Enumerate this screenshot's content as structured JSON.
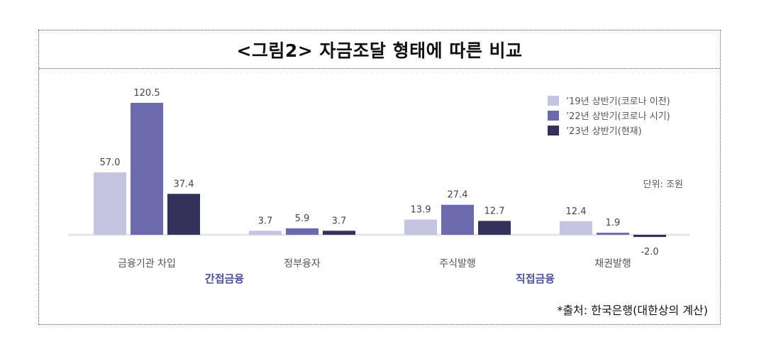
{
  "title": "<그림2> 자금조달 형태에 따른 비교",
  "unit_label": "단위: 조원",
  "source": "*출처: 한국은행(대한상의 계산)",
  "colors": {
    "series1": "#c3c5e1",
    "series2": "#6a6aad",
    "series3": "#32325a",
    "group_label": "#4b4f9a",
    "baseline": "#e6e6e6"
  },
  "chart_data": {
    "type": "bar",
    "categories": [
      "금융기관 차입",
      "정부융자",
      "주식발행",
      "채권발행"
    ],
    "groups": [
      {
        "label": "간접금융",
        "categories": [
          "금융기관 차입",
          "정부융자"
        ]
      },
      {
        "label": "직접금융",
        "categories": [
          "주식발행",
          "채권발행"
        ]
      }
    ],
    "series": [
      {
        "name": "’19년 상반기(코로나 이전)",
        "values": [
          57.0,
          3.7,
          13.9,
          12.4
        ]
      },
      {
        "name": "’22년 상반기(코로나 시기)",
        "values": [
          120.5,
          5.9,
          27.4,
          1.9
        ]
      },
      {
        "name": "’23년 상반기(현재)",
        "values": [
          37.4,
          3.7,
          12.7,
          -2.0
        ]
      }
    ],
    "data_labels": [
      [
        "57.0",
        "3.7",
        "13.9",
        "12.4"
      ],
      [
        "120.5",
        "5.9",
        "27.4",
        "1.9"
      ],
      [
        "37.4",
        "3.7",
        "12.7",
        "-2.0"
      ]
    ],
    "ylim": [
      -2.0,
      120.5
    ],
    "grid": false,
    "legend_position": "top-right"
  }
}
